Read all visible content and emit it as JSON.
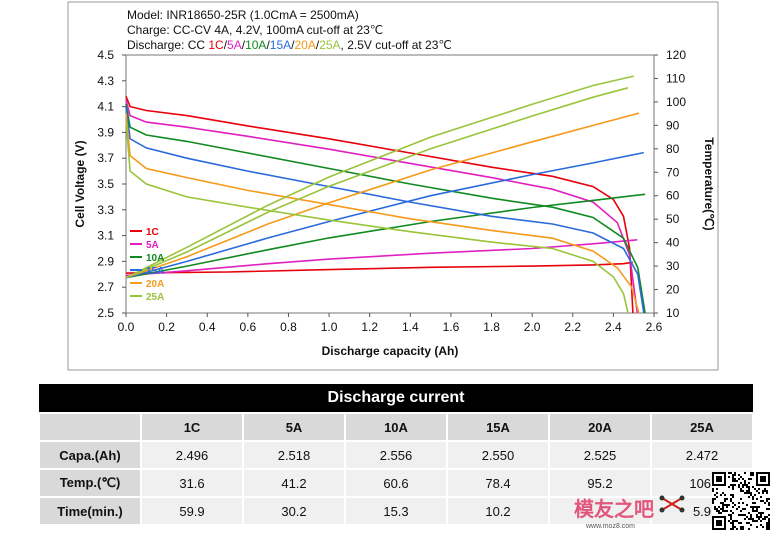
{
  "chart_data": {
    "type": "line",
    "title_lines": [
      "Model: INR18650-25R (1.0CmA = 2500mA)",
      "Charge: CC-CV 4A, 4.2V, 100mA cut-off at 23℃"
    ],
    "discharge_label": {
      "prefix": "Discharge: CC ",
      "parts": [
        "1C",
        "/",
        "5A",
        "/",
        "10A",
        "/",
        "15A",
        "/",
        "20A",
        "/",
        "25A"
      ],
      "suffix": ", 2.5V cut-off at 23℃"
    },
    "xlabel": "Discharge capacity (Ah)",
    "ylabel": "Cell Voltage (V)",
    "y2label": "Temperature(℃)",
    "xlim": [
      0.0,
      2.6
    ],
    "ylim": [
      2.5,
      4.5
    ],
    "y2lim": [
      10,
      120
    ],
    "x_ticks": [
      "0.0",
      "0.2",
      "0.4",
      "0.6",
      "0.8",
      "1.0",
      "1.2",
      "1.4",
      "1.6",
      "1.8",
      "2.0",
      "2.2",
      "2.4",
      "2.6"
    ],
    "y_ticks": [
      "2.5",
      "2.7",
      "2.9",
      "3.1",
      "3.3",
      "3.5",
      "3.7",
      "3.9",
      "4.1",
      "4.3",
      "4.5"
    ],
    "y2_ticks": [
      "10",
      "20",
      "30",
      "40",
      "50",
      "60",
      "70",
      "80",
      "90",
      "100",
      "110",
      "120"
    ],
    "series": [
      {
        "name": "1C",
        "color": "#e8000b",
        "voltage": [
          [
            0,
            4.18
          ],
          [
            0.02,
            4.1
          ],
          [
            0.1,
            4.07
          ],
          [
            0.3,
            4.03
          ],
          [
            0.6,
            3.95
          ],
          [
            1.0,
            3.85
          ],
          [
            1.4,
            3.74
          ],
          [
            1.8,
            3.63
          ],
          [
            2.1,
            3.56
          ],
          [
            2.3,
            3.48
          ],
          [
            2.4,
            3.38
          ],
          [
            2.45,
            3.25
          ],
          [
            2.48,
            3.0
          ],
          [
            2.496,
            2.5
          ]
        ],
        "temp": [
          [
            0,
            27
          ],
          [
            0.5,
            27.5
          ],
          [
            1.0,
            28.5
          ],
          [
            1.5,
            29.5
          ],
          [
            2.0,
            30
          ],
          [
            2.3,
            30.5
          ],
          [
            2.45,
            31
          ],
          [
            2.496,
            31.6
          ]
        ]
      },
      {
        "name": "5A",
        "color": "#e020c0",
        "voltage": [
          [
            0,
            4.15
          ],
          [
            0.02,
            4.03
          ],
          [
            0.1,
            3.98
          ],
          [
            0.3,
            3.94
          ],
          [
            0.6,
            3.87
          ],
          [
            1.0,
            3.77
          ],
          [
            1.4,
            3.66
          ],
          [
            1.8,
            3.55
          ],
          [
            2.1,
            3.46
          ],
          [
            2.3,
            3.36
          ],
          [
            2.42,
            3.2
          ],
          [
            2.48,
            2.95
          ],
          [
            2.518,
            2.5
          ]
        ],
        "temp": [
          [
            0,
            26
          ],
          [
            0.3,
            28
          ],
          [
            0.7,
            31
          ],
          [
            1.0,
            33
          ],
          [
            1.5,
            35.5
          ],
          [
            2.0,
            37.5
          ],
          [
            2.3,
            39.5
          ],
          [
            2.518,
            41.2
          ]
        ]
      },
      {
        "name": "10A",
        "color": "#108a20",
        "voltage": [
          [
            0,
            4.12
          ],
          [
            0.02,
            3.94
          ],
          [
            0.1,
            3.88
          ],
          [
            0.3,
            3.83
          ],
          [
            0.6,
            3.74
          ],
          [
            1.0,
            3.62
          ],
          [
            1.4,
            3.5
          ],
          [
            1.8,
            3.39
          ],
          [
            2.1,
            3.32
          ],
          [
            2.3,
            3.24
          ],
          [
            2.45,
            3.08
          ],
          [
            2.52,
            2.85
          ],
          [
            2.556,
            2.5
          ]
        ],
        "temp": [
          [
            0,
            25
          ],
          [
            0.3,
            30
          ],
          [
            0.7,
            37
          ],
          [
            1.0,
            42
          ],
          [
            1.5,
            49
          ],
          [
            2.0,
            55
          ],
          [
            2.3,
            58
          ],
          [
            2.556,
            60.6
          ]
        ]
      },
      {
        "name": "15A",
        "color": "#2a6adb",
        "voltage": [
          [
            0,
            4.1
          ],
          [
            0.02,
            3.85
          ],
          [
            0.1,
            3.78
          ],
          [
            0.3,
            3.7
          ],
          [
            0.6,
            3.6
          ],
          [
            1.0,
            3.48
          ],
          [
            1.4,
            3.36
          ],
          [
            1.8,
            3.25
          ],
          [
            2.1,
            3.19
          ],
          [
            2.3,
            3.12
          ],
          [
            2.45,
            3.0
          ],
          [
            2.52,
            2.8
          ],
          [
            2.55,
            2.5
          ]
        ],
        "temp": [
          [
            0,
            25
          ],
          [
            0.3,
            32
          ],
          [
            0.7,
            42
          ],
          [
            1.0,
            49
          ],
          [
            1.5,
            60
          ],
          [
            2.0,
            69
          ],
          [
            2.3,
            74
          ],
          [
            2.55,
            78.4
          ]
        ]
      },
      {
        "name": "20A",
        "color": "#f59a1a",
        "voltage": [
          [
            0,
            4.05
          ],
          [
            0.02,
            3.72
          ],
          [
            0.1,
            3.62
          ],
          [
            0.3,
            3.55
          ],
          [
            0.6,
            3.45
          ],
          [
            1.0,
            3.34
          ],
          [
            1.4,
            3.23
          ],
          [
            1.8,
            3.14
          ],
          [
            2.1,
            3.08
          ],
          [
            2.3,
            2.98
          ],
          [
            2.42,
            2.85
          ],
          [
            2.49,
            2.7
          ],
          [
            2.525,
            2.5
          ]
        ],
        "temp": [
          [
            0,
            25
          ],
          [
            0.3,
            34
          ],
          [
            0.7,
            48
          ],
          [
            1.0,
            57
          ],
          [
            1.5,
            71
          ],
          [
            2.0,
            83
          ],
          [
            2.3,
            90
          ],
          [
            2.525,
            95.2
          ]
        ]
      },
      {
        "name": "25A",
        "color": "#9ac43a",
        "voltage": [
          [
            0,
            4.0
          ],
          [
            0.02,
            3.6
          ],
          [
            0.1,
            3.5
          ],
          [
            0.3,
            3.4
          ],
          [
            0.6,
            3.32
          ],
          [
            1.0,
            3.22
          ],
          [
            1.4,
            3.13
          ],
          [
            1.8,
            3.05
          ],
          [
            2.1,
            3.0
          ],
          [
            2.3,
            2.9
          ],
          [
            2.4,
            2.78
          ],
          [
            2.45,
            2.65
          ],
          [
            2.472,
            2.5
          ]
        ],
        "temp": [
          [
            0,
            25
          ],
          [
            0.3,
            36
          ],
          [
            0.7,
            53
          ],
          [
            1.0,
            64
          ],
          [
            1.5,
            80
          ],
          [
            2.0,
            94
          ],
          [
            2.3,
            102
          ],
          [
            2.472,
            106
          ]
        ]
      },
      {
        "name": "25A",
        "color": "#9ac43a",
        "voltage": [],
        "temp": [
          [
            0,
            25
          ],
          [
            0.3,
            38
          ],
          [
            0.7,
            56
          ],
          [
            1.0,
            68
          ],
          [
            1.5,
            85
          ],
          [
            2.0,
            99
          ],
          [
            2.3,
            107
          ],
          [
            2.5,
            111
          ]
        ]
      }
    ],
    "legend_position": "lower-left"
  },
  "table": {
    "title": "Discharge current",
    "columns": [
      "1C",
      "5A",
      "10A",
      "15A",
      "20A",
      "25A"
    ],
    "rows": [
      {
        "label": "Capa.(Ah)",
        "values": [
          "2.496",
          "2.518",
          "2.556",
          "2.550",
          "2.525",
          "2.472"
        ]
      },
      {
        "label": "Temp.(℃)",
        "values": [
          "31.6",
          "41.2",
          "60.6",
          "78.4",
          "95.2",
          "106."
        ]
      },
      {
        "label": "Time(min.)",
        "values": [
          "59.9",
          "30.2",
          "15.3",
          "10.2",
          "",
          "5.9"
        ]
      }
    ]
  },
  "watermark": {
    "text": "模友之吧",
    "url": "www.moz8.com"
  }
}
